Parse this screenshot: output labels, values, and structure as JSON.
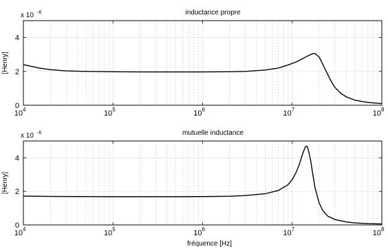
{
  "chart_data": [
    {
      "type": "line",
      "title": "inductance propre",
      "ylabel": "[Henry]",
      "xlabel": "",
      "x_scale": "log",
      "xlim": [
        10000,
        100000000
      ],
      "ylim": [
        0,
        5
      ],
      "y_multiplier_label": "x 10",
      "y_multiplier_exp": "-6",
      "grid": true,
      "x_tick_labels": [
        {
          "base": "10",
          "exp": "4",
          "value": 10000
        },
        {
          "base": "10",
          "exp": "5",
          "value": 100000
        },
        {
          "base": "10",
          "exp": "6",
          "value": 1000000
        },
        {
          "base": "10",
          "exp": "7",
          "value": 10000000
        },
        {
          "base": "10",
          "exp": "8",
          "value": 100000000
        }
      ],
      "y_ticks": [
        0,
        2,
        4
      ],
      "y_tick_labels": [
        "0",
        "2",
        "4"
      ],
      "series": [
        {
          "x": [
            10000,
            15000,
            20000,
            30000,
            50000,
            100000,
            200000,
            500000,
            1000000,
            2000000,
            3000000,
            5000000,
            7000000,
            9000000,
            11000000,
            13000000,
            15000000,
            17000000,
            18000000,
            20000000,
            23000000,
            27000000,
            30000000,
            35000000,
            40000000,
            50000000,
            60000000,
            75000000,
            100000000
          ],
          "y": [
            2.4,
            2.2,
            2.1,
            2.03,
            2.0,
            1.98,
            1.97,
            1.97,
            1.97,
            1.98,
            2.0,
            2.08,
            2.2,
            2.38,
            2.55,
            2.75,
            2.92,
            3.05,
            3.05,
            2.85,
            2.2,
            1.45,
            1.05,
            0.7,
            0.5,
            0.3,
            0.22,
            0.15,
            0.1
          ]
        }
      ]
    },
    {
      "type": "line",
      "title": "mutuelle inductance",
      "ylabel": "[Henry]",
      "xlabel": "fréquence [Hz]",
      "x_scale": "log",
      "xlim": [
        10000,
        100000000
      ],
      "ylim": [
        0,
        5
      ],
      "y_multiplier_label": "x 10",
      "y_multiplier_exp": "-6",
      "grid": true,
      "x_tick_labels": [
        {
          "base": "10",
          "exp": "4",
          "value": 10000
        },
        {
          "base": "10",
          "exp": "5",
          "value": 100000
        },
        {
          "base": "10",
          "exp": "6",
          "value": 1000000
        },
        {
          "base": "10",
          "exp": "7",
          "value": 10000000
        },
        {
          "base": "10",
          "exp": "8",
          "value": 100000000
        }
      ],
      "y_ticks": [
        0,
        2,
        4
      ],
      "y_tick_labels": [
        "0",
        "2",
        "4"
      ],
      "series": [
        {
          "x": [
            10000,
            20000,
            50000,
            100000,
            200000,
            500000,
            1000000,
            2000000,
            3000000,
            5000000,
            7000000,
            9000000,
            10000000,
            11000000,
            12000000,
            13000000,
            14000000,
            14500000,
            15000000,
            16000000,
            17000000,
            18000000,
            20000000,
            22000000,
            25000000,
            30000000,
            40000000,
            50000000,
            70000000,
            100000000
          ],
          "y": [
            1.72,
            1.7,
            1.69,
            1.68,
            1.68,
            1.68,
            1.69,
            1.71,
            1.75,
            1.86,
            2.05,
            2.4,
            2.7,
            3.1,
            3.6,
            4.2,
            4.65,
            4.7,
            4.55,
            3.9,
            3.0,
            2.2,
            1.3,
            0.85,
            0.52,
            0.32,
            0.18,
            0.12,
            0.08,
            0.06
          ]
        }
      ]
    }
  ]
}
